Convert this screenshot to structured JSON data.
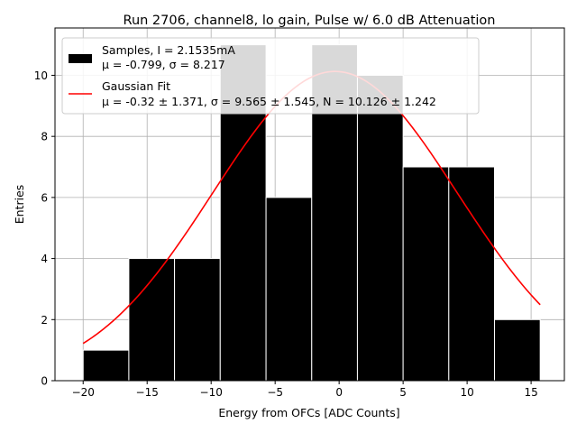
{
  "chart_data": {
    "type": "bar",
    "title": "Run 2706, channel8, lo gain, Pulse w/ 6.0 dB Attenuation",
    "xlabel": "Energy from OFCs [ADC Counts]",
    "ylabel": "Entries",
    "xlim": [
      -22.2,
      17.6
    ],
    "ylim": [
      0,
      11.55
    ],
    "xticks": [
      -20,
      -15,
      -10,
      -5,
      0,
      5,
      10,
      15
    ],
    "xtick_labels": [
      "−20",
      "−15",
      "−10",
      "−5",
      "0",
      "5",
      "10",
      "15"
    ],
    "yticks": [
      0,
      2,
      4,
      6,
      8,
      10
    ],
    "ytick_labels": [
      "0",
      "2",
      "4",
      "6",
      "8",
      "10"
    ],
    "grid": true,
    "histogram": {
      "bin_edges": [
        -20.0,
        -16.43,
        -12.86,
        -9.29,
        -5.71,
        -2.14,
        1.43,
        5.0,
        8.57,
        12.14,
        15.71
      ],
      "counts": [
        1,
        4,
        4,
        11,
        6,
        11,
        10,
        7,
        7,
        2
      ],
      "color": "#000000"
    },
    "fit": {
      "type": "gaussian",
      "mu": -0.32,
      "sigma": 9.565,
      "N": 10.126,
      "x_range": [
        -20,
        15.71
      ],
      "color": "#ff0000"
    },
    "legend": {
      "placement": "top-left",
      "entries": [
        {
          "line1": "Samples, I = 2.1535mA",
          "line2": "μ = -0.799, σ = 8.217"
        },
        {
          "line1": "Gaussian Fit",
          "line2": "μ = -0.32 ± 1.371, σ = 9.565 ± 1.545, N = 10.126 ± 1.242"
        }
      ]
    }
  }
}
